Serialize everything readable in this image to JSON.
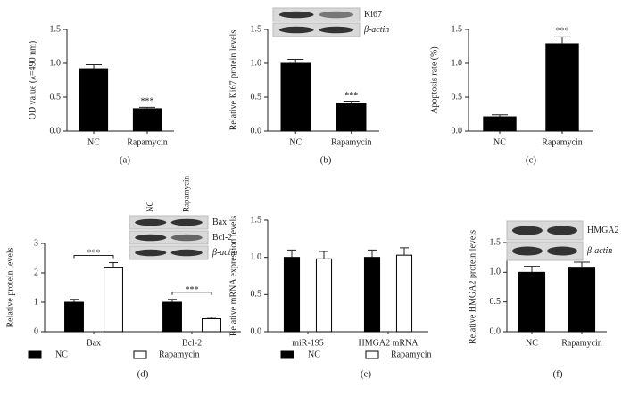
{
  "chart_data": [
    {
      "type": "bar",
      "panel_label": "(a)",
      "y_label": "OD value (λ=490 nm)",
      "categories": [
        "NC",
        "Rapamycin"
      ],
      "values": [
        0.92,
        0.33
      ],
      "errors": [
        0.06,
        0.02
      ],
      "color": "#000000",
      "ylim": [
        0,
        1.5
      ],
      "yticks": [
        {
          "value": 0,
          "label": "0.0"
        },
        0.5,
        {
          "value": 1,
          "label": "1.0"
        },
        1.5
      ],
      "annotations": [
        "***"
      ]
    },
    {
      "type": "bar",
      "panel_label": "(b)",
      "y_label": "Relative Ki67 protein levels",
      "categories": [
        "NC",
        "Rapamycin"
      ],
      "values": [
        1.0,
        0.41
      ],
      "errors": [
        0.06,
        0.03
      ],
      "color": "#000000",
      "ylim": [
        0,
        1.5
      ],
      "yticks": [
        {
          "value": 0,
          "label": "0.0"
        },
        0.5,
        {
          "value": 1,
          "label": "1.0"
        },
        1.5
      ],
      "annotations": [
        "***"
      ],
      "blot_rows": [
        "Ki67",
        "β-actin"
      ]
    },
    {
      "type": "bar",
      "panel_label": "(c)",
      "y_label": "Apoptosis rate (%)",
      "categories": [
        "NC",
        "Rapamycin"
      ],
      "values": [
        0.21,
        1.29
      ],
      "errors": [
        0.03,
        0.1
      ],
      "color": "#000000",
      "ylim": [
        0,
        1.5
      ],
      "yticks": [
        {
          "value": 0,
          "label": "0.0"
        },
        0.5,
        {
          "value": 1,
          "label": "1.0"
        },
        1.5
      ],
      "annotations": [
        "***"
      ]
    },
    {
      "type": "grouped_bar",
      "panel_label": "(d)",
      "y_label": "Relative protein levels",
      "categories": [
        "Bax",
        "Bcl-2"
      ],
      "series": [
        {
          "name": "NC",
          "color": "#000000",
          "values": [
            1.0,
            1.0
          ],
          "errors": [
            0.1,
            0.1
          ]
        },
        {
          "name": "Rapamycin",
          "color": "#ffffff",
          "values": [
            2.17,
            0.44
          ],
          "errors": [
            0.18,
            0.05
          ]
        }
      ],
      "ylim": [
        0,
        3
      ],
      "yticks": [
        0,
        1,
        2,
        3
      ],
      "annotations": [
        "***",
        "***"
      ],
      "blot_lanes": [
        "NC",
        "Rapamycin"
      ],
      "blot_rows": [
        "Bax",
        "Bcl-2",
        "β-actin"
      ]
    },
    {
      "type": "grouped_bar",
      "panel_label": "(e)",
      "y_label": "Relative mRNA expression levels",
      "categories": [
        "miR-195",
        "HMGA2 mRNA"
      ],
      "series": [
        {
          "name": "NC",
          "color": "#000000",
          "values": [
            1.0,
            1.0
          ],
          "errors": [
            0.1,
            0.1
          ]
        },
        {
          "name": "Rapamycin",
          "color": "#ffffff",
          "values": [
            0.98,
            1.03
          ],
          "errors": [
            0.1,
            0.1
          ]
        }
      ],
      "ylim": [
        0,
        1.5
      ],
      "yticks": [
        {
          "value": 0,
          "label": "0.0"
        },
        0.5,
        {
          "value": 1,
          "label": "1.0"
        },
        1.5
      ]
    },
    {
      "type": "bar",
      "panel_label": "(f)",
      "y_label": "Relative HMGA2 protein levels",
      "categories": [
        "NC",
        "Rapamycin"
      ],
      "values": [
        1.0,
        1.07
      ],
      "errors": [
        0.1,
        0.1
      ],
      "color": "#000000",
      "ylim": [
        0,
        1.5
      ],
      "yticks": [
        {
          "value": 0,
          "label": "0.0"
        },
        0.5,
        {
          "value": 1,
          "label": "1.0"
        },
        1.5
      ],
      "blot_rows": [
        "HMGA2",
        "β-actin"
      ]
    }
  ]
}
